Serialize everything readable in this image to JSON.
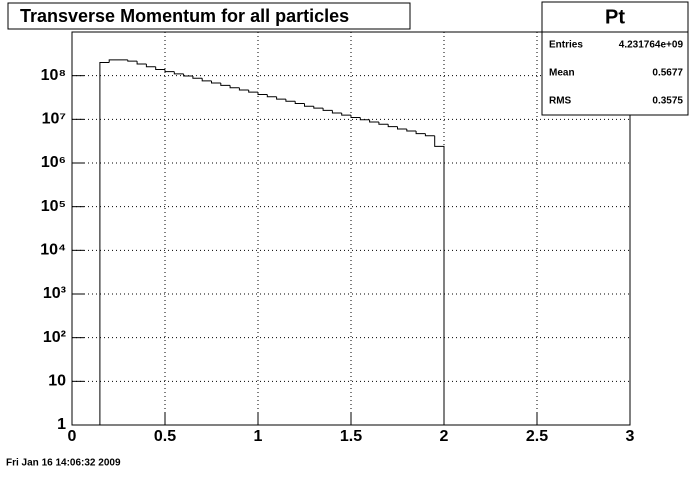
{
  "chart_data": {
    "type": "histogram",
    "title": "Transverse Momentum for all particles",
    "bins": [
      0.15,
      0.2,
      0.25,
      0.3,
      0.35,
      0.4,
      0.45,
      0.5,
      0.55,
      0.6,
      0.65,
      0.7,
      0.75,
      0.8,
      0.85,
      0.9,
      0.95,
      1.0,
      1.05,
      1.1,
      1.15,
      1.2,
      1.25,
      1.3,
      1.35,
      1.4,
      1.45,
      1.5,
      1.55,
      1.6,
      1.65,
      1.7,
      1.75,
      1.8,
      1.85,
      1.9,
      1.95,
      2.0
    ],
    "values": [
      200000000,
      230000000,
      230000000,
      215000000,
      185000000,
      160000000,
      138000000,
      124000000,
      110000000,
      98000000,
      87000000,
      76000000,
      68000000,
      60000000,
      53000000,
      47000000,
      42000000,
      37000000,
      33000000,
      29000000,
      26000000,
      23000000,
      20000000,
      18000000,
      16000000,
      14000000,
      12500000,
      11000000,
      9800000,
      8700000,
      7700000,
      6800000,
      6000000,
      5400000,
      4700000,
      4200000,
      2400000
    ],
    "color": "#000000",
    "xlim": [
      0,
      3
    ],
    "xticks": [
      0,
      0.5,
      1,
      1.5,
      2,
      2.5,
      3
    ],
    "ylim": [
      1,
      1000000000
    ],
    "log_y": true,
    "yticks": [
      1,
      10,
      {
        "value": 100,
        "label": "10²"
      },
      {
        "value": 1000,
        "label": "10³"
      },
      {
        "value": 10000,
        "label": "10⁴"
      },
      {
        "value": 100000,
        "label": "10⁵"
      },
      {
        "value": 1000000,
        "label": "10⁶"
      },
      {
        "value": 10000000,
        "label": "10⁷"
      },
      {
        "value": 100000000,
        "label": "10⁸"
      }
    ],
    "grid": true,
    "stats": {
      "title": "Pt",
      "rows": [
        [
          "Entries",
          "4.231764e+09"
        ],
        [
          "Mean",
          "0.5677"
        ],
        [
          "RMS",
          "0.3575"
        ]
      ]
    },
    "footer": "Fri Jan 16 14:06:32 2009"
  }
}
